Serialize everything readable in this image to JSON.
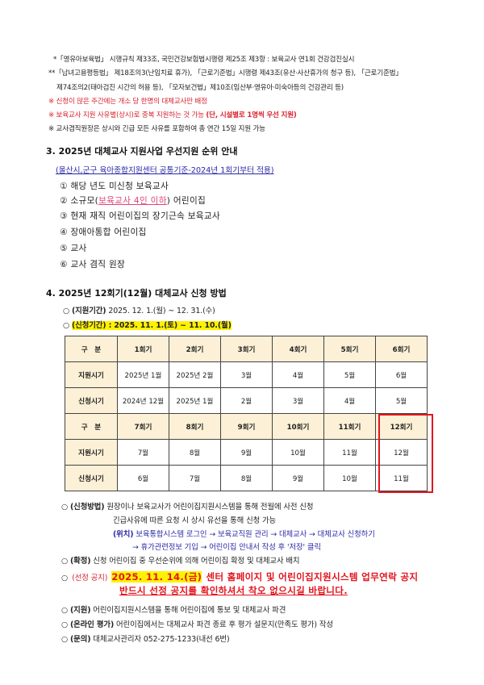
{
  "notes": {
    "n1": "*「영유아보육법」 시행규칙 제33조, 국민건강보험법시행령 제25조 제3항 : 보육교사 연1회 건강검진실시",
    "n2": "**「남녀고용평등법」 제18조의3(난임치료 휴가), 「근로기준법」시행령 제43조(유산·사산휴가의 청구 등), 「근로기준법」",
    "n2b": "제74조의2(태아검진 시간의 허용 등), 「모자보건법」제10조(임산부·영유아·미숙아등의 건강관리 등)",
    "n3": "※ 신청이 많은 주간에는 개소 당 한명의 대체교사만 배정",
    "n4a": "※ 보육교사 지원 사유별(상시)로 중복 지원하는 것 가능",
    "n4b": "(단, 시설별로 1명씩 우선 지원)",
    "n5": "※ 교사겸직원장은 상시와 긴급 모든 사유를 포함하여 총 연간 15일 지원 가능"
  },
  "section3": {
    "title": "3. 2025년 대체교사 지원사업 우선지원 순위 안내",
    "subtitle": "(울산시,군구 육아종합지원센터 공통기준-2024년 1회기부터 적용)",
    "items": [
      {
        "num": "①",
        "text": "해당 년도 미신청 보육교사"
      },
      {
        "num": "②",
        "pre": "소규모(",
        "emph": "보육교사 4인 이하",
        "post": ") 어린이집"
      },
      {
        "num": "③",
        "text": "현재 재직 어린이집의 장기근속 보육교사"
      },
      {
        "num": "④",
        "text": "장애아통합 어린이집"
      },
      {
        "num": "⑤",
        "text": "교사"
      },
      {
        "num": "⑥",
        "text": "교사 겸직 원장"
      }
    ]
  },
  "section4": {
    "title": "4. 2025년 12회기(12월) 대체교사 신청 방법",
    "support_label": "(지원기간)",
    "support_value": "2025. 12. 1.(월) ~ 12. 31.(수)",
    "apply_period": "(신청기간) : 2025. 11. 1.(토) ~ 11. 10.(월)",
    "table": {
      "rows": [
        [
          "구　분",
          "1회기",
          "2회기",
          "3회기",
          "4회기",
          "5회기",
          "6회기"
        ],
        [
          "지원시기",
          "2025년 1월",
          "2025년 2월",
          "3월",
          "4월",
          "5월",
          "6월"
        ],
        [
          "신청시기",
          "2024년 12월",
          "2025년 1월",
          "2월",
          "3월",
          "4월",
          "5월"
        ],
        [
          "구　분",
          "7회기",
          "8회기",
          "9회기",
          "10회기",
          "11회기",
          "12회기"
        ],
        [
          "지원시기",
          "7월",
          "8월",
          "9월",
          "10월",
          "11월",
          "12월"
        ],
        [
          "신청시기",
          "6월",
          "7월",
          "8월",
          "9월",
          "10월",
          "11월"
        ]
      ],
      "highlight_color": "#e3141e"
    },
    "method_label": "(신청방법)",
    "method_line1": "원장이나 보육교사가 어린이집지원시스템을 통해 전월에 사전 신청",
    "method_line2": "긴급사유에 따른 요청 시 상시 유선을 통해 신청 가능",
    "location_label": "(위치)",
    "location_line1": "보육통합시스템 로그인 → 보육교직원 관리 → 대체교사 → 대체교사 신청하기",
    "location_line2": "→ 휴가관련정보 기입 → 어린이집 안내서 작성 후 '저장' 클릭",
    "confirm_label": "(확정)",
    "confirm_text": "신청 어린이집 중 우선순위에 의해 어린이집 확정 및 대체교사 배치",
    "notice_label": "(선정 공지)",
    "notice_date": "2025. 11. 14.(금)",
    "notice_text": "센터 홈페이지 및 어린이집지원시스템 업무연락 공지",
    "notice_line2": "반드시 선정 공지를 확인하셔서 착오 없으시길 바랍니다.",
    "dispatch_label": "(지원)",
    "dispatch_text": "어린이집지원시스템을 통해 어린이집에 통보 및 대체교사 파견",
    "eval_label": "(온라인 평가)",
    "eval_text": "어린이집에서는 대체교사 파견 종료 후 평가 설문지(만족도 평가) 작성",
    "contact_label": "(문의)",
    "contact_text": "대체교사관리자 052-275-1233(내선 6번)",
    "bullet": "○"
  }
}
